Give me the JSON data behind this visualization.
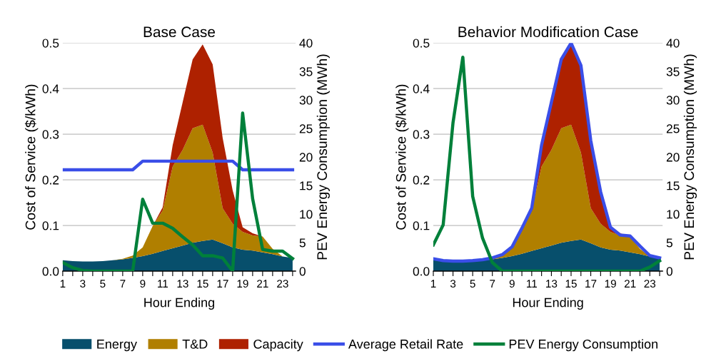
{
  "chart_data": [
    {
      "type": "area",
      "title": "Base Case",
      "xlabel": "Hour Ending",
      "ylabel": "Cost of Service ($/kWh)",
      "y2label": "PEV Energy Consumption (MWh)",
      "stacked": true,
      "grid": "y",
      "legend": "bottom",
      "x": [
        1,
        2,
        3,
        4,
        5,
        6,
        7,
        8,
        9,
        10,
        11,
        12,
        13,
        14,
        15,
        16,
        17,
        18,
        19,
        20,
        21,
        22,
        23,
        24
      ],
      "xlim": [
        1,
        24.3
      ],
      "xticks": [
        1,
        {
          "value": 2,
          "label": null
        },
        3,
        {
          "value": 4,
          "label": null
        },
        5,
        {
          "value": 6,
          "label": null
        },
        7,
        {
          "value": 8,
          "label": null
        },
        9,
        {
          "value": 10,
          "label": null
        },
        11,
        {
          "value": 12,
          "label": null
        },
        13,
        {
          "value": 14,
          "label": null
        },
        15,
        {
          "value": 16,
          "label": null
        },
        17,
        {
          "value": 18,
          "label": null
        },
        19,
        {
          "value": 20,
          "label": null
        },
        21,
        {
          "value": 22,
          "label": null
        },
        23,
        {
          "value": 24,
          "label": null
        }
      ],
      "ylim": [
        0,
        0.5
      ],
      "yticks": [
        {
          "value": 0,
          "label": "0.0"
        },
        {
          "value": 0.1,
          "label": "0.1"
        },
        {
          "value": 0.2,
          "label": "0.2"
        },
        {
          "value": 0.3,
          "label": "0.3"
        },
        {
          "value": 0.4,
          "label": "0.4"
        },
        {
          "value": 0.5,
          "label": "0.5"
        }
      ],
      "y2lim": [
        0,
        40
      ],
      "y2ticks": [
        0,
        5,
        10,
        15,
        20,
        25,
        30,
        35,
        40
      ],
      "series": [
        {
          "name": "Energy",
          "color": "#074f6c",
          "values": [
            0.024,
            0.022,
            0.021,
            0.021,
            0.022,
            0.024,
            0.026,
            0.029,
            0.033,
            0.038,
            0.044,
            0.05,
            0.056,
            0.062,
            0.066,
            0.069,
            0.061,
            0.052,
            0.047,
            0.045,
            0.041,
            0.037,
            0.032,
            0.029
          ]
        },
        {
          "name": "T&D",
          "color": "#b07f00",
          "values": [
            0,
            0,
            0,
            0,
            0,
            0,
            0.001,
            0.005,
            0.019,
            0.061,
            0.089,
            0.179,
            0.21,
            0.251,
            0.255,
            0.191,
            0.077,
            0.052,
            0.039,
            0.033,
            0.035,
            0.012,
            0,
            0
          ]
        },
        {
          "name": "Capacity",
          "color": "#ae2100",
          "values": [
            0,
            0,
            0,
            0,
            0,
            0,
            0,
            0,
            0,
            0,
            0.007,
            0.047,
            0.104,
            0.151,
            0.176,
            0.193,
            0.154,
            0.073,
            0.01,
            0.005,
            0,
            0,
            0,
            0
          ]
        },
        {
          "name": "Average Retail Rate",
          "type": "line",
          "color": "#3a4ee8",
          "values": [
            0.222,
            0.222,
            0.222,
            0.222,
            0.222,
            0.222,
            0.222,
            0.222,
            0.241,
            0.241,
            0.241,
            0.241,
            0.241,
            0.241,
            0.241,
            0.241,
            0.241,
            0.241,
            0.222,
            0.222,
            0.222,
            0.222,
            0.222,
            0.222
          ]
        },
        {
          "name": "PEV Energy Consumption",
          "type": "line",
          "axis": "y2",
          "color": "#00803a",
          "values": [
            1.5,
            0.6,
            0.1,
            0,
            0,
            0,
            0,
            0,
            12.6,
            8.4,
            8.4,
            7.5,
            6.0,
            4.6,
            2.7,
            2.7,
            2.3,
            0,
            27.7,
            12.7,
            3.8,
            3.5,
            3.5,
            2.2
          ]
        }
      ]
    },
    {
      "type": "area",
      "title": "Behavior Modification Case",
      "xlabel": "Hour Ending",
      "ylabel": "Cost of Service ($/kWh)",
      "y2label": "PEV Energy Consumption (MWh)",
      "stacked": true,
      "grid": "y",
      "x": [
        1,
        2,
        3,
        4,
        5,
        6,
        7,
        8,
        9,
        10,
        11,
        12,
        13,
        14,
        15,
        16,
        17,
        18,
        19,
        20,
        21,
        22,
        23,
        24
      ],
      "xlim": [
        1,
        24.3
      ],
      "xticks": [
        1,
        {
          "value": 2,
          "label": null
        },
        3,
        {
          "value": 4,
          "label": null
        },
        5,
        {
          "value": 6,
          "label": null
        },
        7,
        {
          "value": 8,
          "label": null
        },
        9,
        {
          "value": 10,
          "label": null
        },
        11,
        {
          "value": 12,
          "label": null
        },
        13,
        {
          "value": 14,
          "label": null
        },
        15,
        {
          "value": 16,
          "label": null
        },
        17,
        {
          "value": 18,
          "label": null
        },
        19,
        {
          "value": 20,
          "label": null
        },
        21,
        {
          "value": 22,
          "label": null
        },
        23,
        {
          "value": 24,
          "label": null
        }
      ],
      "ylim": [
        0,
        0.5
      ],
      "yticks": [
        {
          "value": 0,
          "label": "0.0"
        },
        {
          "value": 0.1,
          "label": "0.1"
        },
        {
          "value": 0.2,
          "label": "0.2"
        },
        {
          "value": 0.3,
          "label": "0.3"
        },
        {
          "value": 0.4,
          "label": "0.4"
        },
        {
          "value": 0.5,
          "label": "0.5"
        }
      ],
      "y2lim": [
        0,
        40
      ],
      "y2ticks": [
        0,
        5,
        10,
        15,
        20,
        25,
        30,
        35,
        40
      ],
      "series": [
        {
          "color": "#074f6c",
          "values": [
            0.024,
            0.022,
            0.021,
            0.021,
            0.022,
            0.024,
            0.026,
            0.029,
            0.033,
            0.038,
            0.044,
            0.05,
            0.056,
            0.062,
            0.066,
            0.069,
            0.061,
            0.052,
            0.047,
            0.045,
            0.041,
            0.037,
            0.032,
            0.029
          ]
        },
        {
          "color": "#b07f00",
          "values": [
            0,
            0,
            0,
            0,
            0,
            0,
            0.001,
            0.005,
            0.019,
            0.061,
            0.089,
            0.179,
            0.21,
            0.251,
            0.255,
            0.191,
            0.077,
            0.052,
            0.039,
            0.033,
            0.035,
            0.012,
            0,
            0
          ]
        },
        {
          "color": "#ae2100",
          "values": [
            0,
            0,
            0,
            0,
            0,
            0,
            0,
            0,
            0,
            0,
            0.007,
            0.047,
            0.104,
            0.151,
            0.176,
            0.193,
            0.154,
            0.073,
            0.01,
            0.005,
            0,
            0,
            0,
            0
          ]
        },
        {
          "type": "line",
          "color": "#3a4ee8",
          "values": [
            0.027,
            0.023,
            0.022,
            0.022,
            0.023,
            0.025,
            0.029,
            0.036,
            0.053,
            0.094,
            0.138,
            0.276,
            0.37,
            0.464,
            0.5,
            0.451,
            0.286,
            0.174,
            0.096,
            0.079,
            0.077,
            0.055,
            0.034,
            0.029
          ]
        },
        {
          "type": "line",
          "axis": "y2",
          "color": "#00803a",
          "values": [
            4.6,
            8.1,
            26.0,
            37.5,
            13.1,
            5.8,
            1.5,
            0,
            0,
            0,
            0,
            0,
            0,
            0,
            0,
            0,
            0,
            0,
            0,
            0,
            0,
            0,
            0.7,
            1.8
          ]
        }
      ]
    }
  ]
}
